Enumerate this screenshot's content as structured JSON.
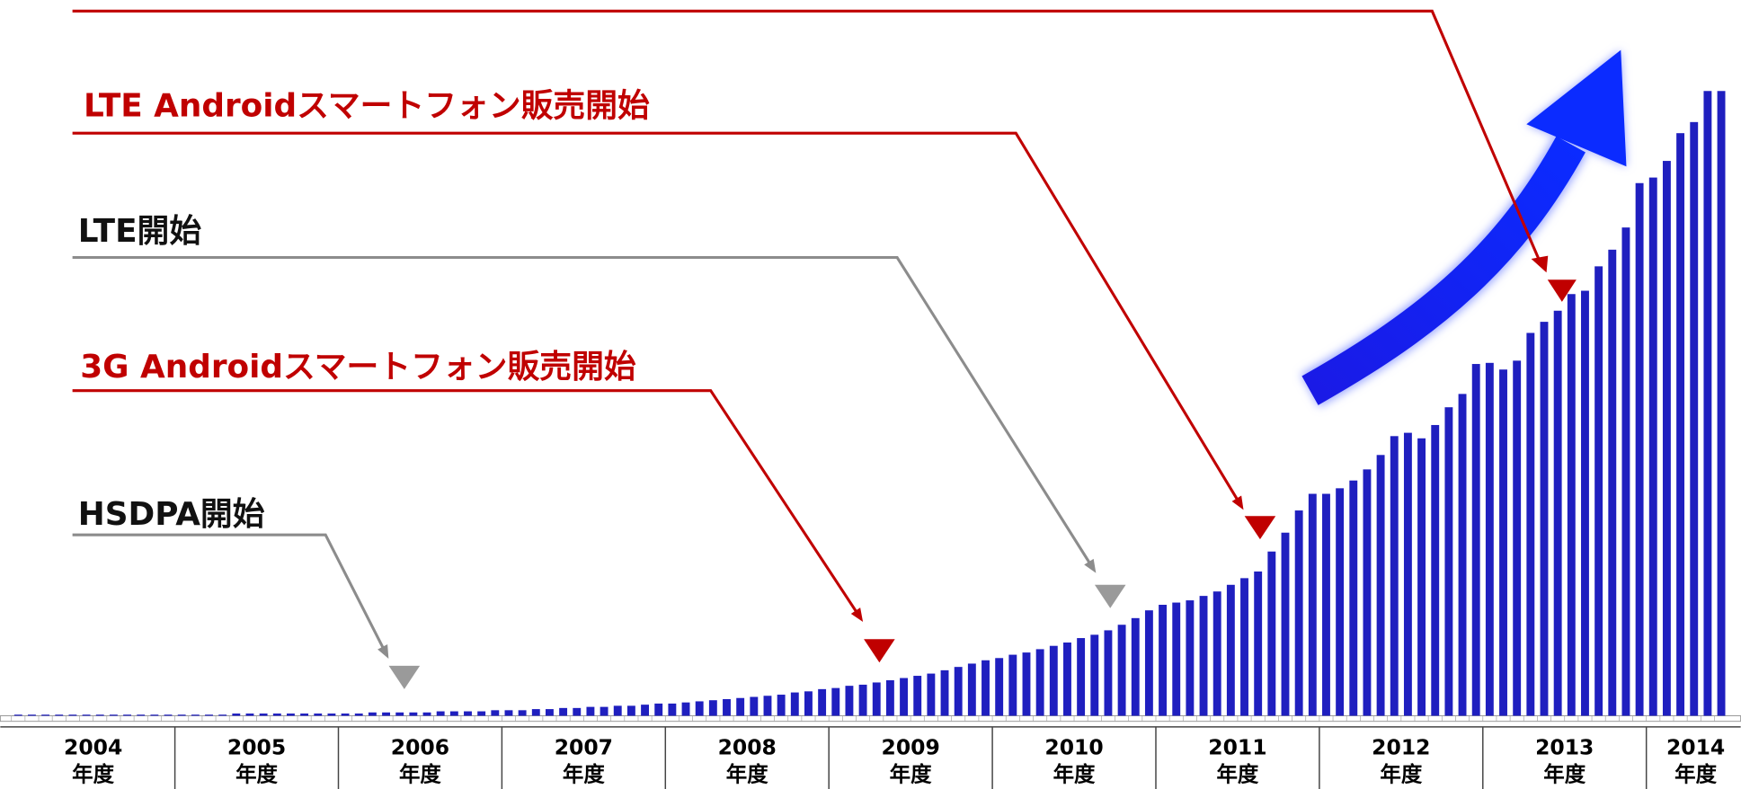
{
  "chart_data": {
    "type": "bar",
    "color": "#1f1fbf",
    "ylim": [
      0,
      600
    ],
    "categories": [
      null,
      null,
      null,
      null,
      null,
      null,
      null,
      null,
      null,
      null,
      null,
      null,
      null,
      null,
      null,
      null,
      null,
      null,
      null,
      null,
      null,
      null,
      null,
      null,
      null,
      null,
      null,
      null,
      null,
      null,
      null,
      null,
      null,
      null,
      null,
      null,
      null,
      null,
      null,
      null,
      null,
      null,
      null,
      null,
      null,
      null,
      null,
      null,
      null,
      null,
      null,
      null,
      null,
      null,
      null,
      null,
      null,
      null,
      null,
      null,
      null,
      null,
      null,
      null,
      null,
      null,
      null,
      null,
      null,
      null,
      null,
      null,
      null,
      null,
      null,
      null,
      null,
      null,
      null,
      null,
      null,
      null,
      null,
      null,
      null,
      null,
      null,
      null,
      null,
      null,
      null,
      null,
      null,
      null,
      null,
      null,
      null,
      null,
      null,
      null,
      null,
      null,
      null,
      null,
      null,
      null,
      null,
      null,
      null,
      null,
      null,
      null,
      null,
      null,
      null,
      null,
      null,
      null,
      null,
      null,
      null,
      null,
      null,
      null,
      null,
      null
    ],
    "values": [
      1,
      1,
      1,
      1,
      1,
      1,
      1,
      1,
      1,
      1,
      1,
      1,
      1,
      1,
      1,
      1,
      2,
      2,
      2,
      2,
      2,
      2,
      2,
      2,
      2,
      2,
      3,
      3,
      3,
      3,
      3,
      4,
      4,
      4,
      4,
      5,
      5,
      5,
      6,
      6,
      7,
      7,
      8,
      8,
      9,
      9,
      10,
      11,
      11,
      12,
      13,
      14,
      15,
      16,
      17,
      18,
      19,
      21,
      22,
      24,
      25,
      27,
      28,
      30,
      32,
      34,
      36,
      38,
      41,
      44,
      47,
      50,
      52,
      55,
      57,
      60,
      63,
      66,
      70,
      73,
      77,
      82,
      88,
      95,
      100,
      102,
      104,
      108,
      112,
      118,
      124,
      130,
      148,
      165,
      185,
      200,
      200,
      205,
      212,
      222,
      235,
      252,
      255,
      250,
      262,
      278,
      290,
      317,
      318,
      312,
      320,
      345,
      355,
      365,
      380,
      383,
      405,
      420,
      440,
      480,
      485,
      500,
      525,
      535,
      563,
      563
    ],
    "x_groups": [
      {
        "label": "2004",
        "unit": "年度"
      },
      {
        "label": "2005",
        "unit": "年度"
      },
      {
        "label": "2006",
        "unit": "年度"
      },
      {
        "label": "2007",
        "unit": "年度"
      },
      {
        "label": "2008",
        "unit": "年度"
      },
      {
        "label": "2009",
        "unit": "年度"
      },
      {
        "label": "2010",
        "unit": "年度"
      },
      {
        "label": "2011",
        "unit": "年度"
      },
      {
        "label": "2012",
        "unit": "年度"
      },
      {
        "label": "2013",
        "unit": "年度"
      },
      {
        "label": "2014",
        "unit": "年度"
      }
    ],
    "annotations": [
      {
        "text": "LTE Androidスマートフォン販売開始",
        "color": "#c00000"
      },
      {
        "text": "LTE開始",
        "color": "#111111",
        "line_color": "#8c8c8c"
      },
      {
        "text": "3G Androidスマートフォン販売開始",
        "color": "#c00000"
      },
      {
        "text": "HSDPA開始",
        "color": "#111111",
        "line_color": "#8c8c8c"
      }
    ]
  }
}
